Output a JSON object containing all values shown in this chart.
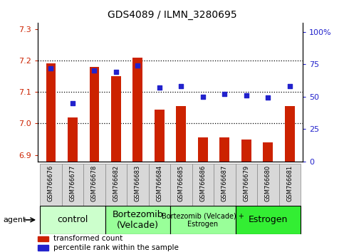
{
  "title": "GDS4089 / ILMN_3280695",
  "samples": [
    "GSM766676",
    "GSM766677",
    "GSM766678",
    "GSM766682",
    "GSM766683",
    "GSM766684",
    "GSM766685",
    "GSM766686",
    "GSM766687",
    "GSM766679",
    "GSM766680",
    "GSM766681"
  ],
  "red_values": [
    7.19,
    7.02,
    7.18,
    7.15,
    7.21,
    7.045,
    7.055,
    6.955,
    6.955,
    6.95,
    6.94,
    7.055
  ],
  "blue_values": [
    72,
    45,
    70,
    69,
    74,
    57,
    58,
    50,
    52,
    51,
    49,
    58
  ],
  "ylim_left": [
    6.88,
    7.32
  ],
  "ylim_right": [
    0,
    107
  ],
  "yticks_left": [
    6.9,
    7.0,
    7.1,
    7.2,
    7.3
  ],
  "yticks_right": [
    0,
    25,
    50,
    75,
    100
  ],
  "ytick_right_labels": [
    "0",
    "25",
    "50",
    "75",
    "100%"
  ],
  "hlines": [
    7.0,
    7.1,
    7.2
  ],
  "bar_color": "#cc2200",
  "dot_color": "#2222cc",
  "bar_bottom": 6.88,
  "groups": [
    {
      "label": "control",
      "start": 0,
      "end": 3,
      "color": "#ccffcc"
    },
    {
      "label": "Bortezomib\n(Velcade)",
      "start": 3,
      "end": 6,
      "color": "#99ff99"
    },
    {
      "label": "Bortezomib (Velcade) +\nEstrogen",
      "start": 6,
      "end": 9,
      "color": "#99ff99"
    },
    {
      "label": "Estrogen",
      "start": 9,
      "end": 12,
      "color": "#33ee33"
    }
  ],
  "group_fontsizes": [
    9,
    9,
    7,
    9
  ],
  "legend_items": [
    {
      "label": "transformed count",
      "color": "#cc2200"
    },
    {
      "label": "percentile rank within the sample",
      "color": "#2222cc"
    }
  ],
  "agent_label": "agent",
  "bar_width": 0.45,
  "dot_size": 25,
  "background_color": "white",
  "plot_bg_color": "white",
  "title_fontsize": 10,
  "ytick_fontsize": 8,
  "sample_fontsize": 6
}
